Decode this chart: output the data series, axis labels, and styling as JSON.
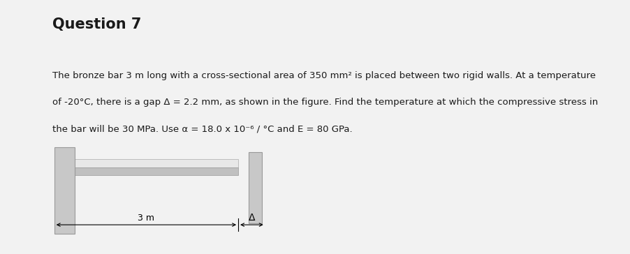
{
  "title": "Question 7",
  "line1": "The bronze bar 3 m long with a cross-sectional area of 350 mm² is placed between two rigid walls. At a temperature",
  "line2": "of -20°C, there is a gap Δ = 2.2 mm, as shown in the figure. Find the temperature at which the compressive stress in",
  "line3": "the bar will be 30 MPa. Use α = 18.0 x 10⁻⁶ / °C and E = 80 GPa.",
  "page_bg": "#f2f2f2",
  "content_bg": "#f2f2f2",
  "green_bar_color": "#3dc45a",
  "title_fontsize": 15,
  "body_fontsize": 9.5,
  "wall_color_light": "#c8c8c8",
  "wall_color_dark": "#b0b0b0",
  "bar_fill_color": "#e0e0e0",
  "bar_line_color": "#999999",
  "dim_label": "3 m",
  "gap_label": "Δ"
}
